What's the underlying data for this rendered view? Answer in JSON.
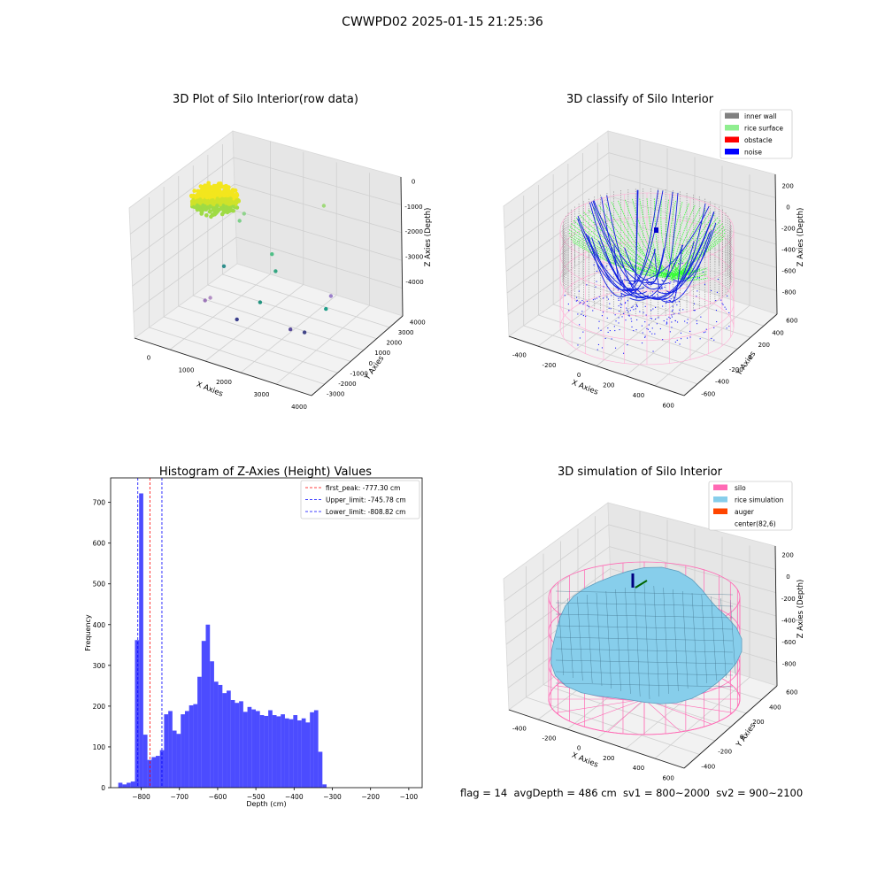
{
  "figure": {
    "suptitle": "CWWPD02 2025-01-15 21:25:36",
    "footer": "flag = 14  avgDepth = 486 cm  sv1 = 800~2000  sv2 = 900~2100"
  },
  "chart_data": [
    {
      "type": "scatter3d",
      "title": "3D Plot of Silo Interior(row data)",
      "xlabel": "X Axies",
      "ylabel": "Y Axies",
      "zlabel": "Z Axies (Depth)",
      "x_ticks": [
        "0",
        "1000",
        "2000",
        "3000",
        "4000"
      ],
      "y_ticks": [
        "-3000",
        "-2000",
        "-1000",
        "0",
        "1000",
        "2000",
        "3000",
        "4000"
      ],
      "z_ticks": [
        "0",
        "-1000",
        "-2000",
        "-3000",
        "-4000"
      ],
      "xlim": [
        -500,
        4000
      ],
      "ylim": [
        -3500,
        4000
      ],
      "zlim": [
        -4500,
        0
      ],
      "colormap": "viridis",
      "cluster_color": "#f5e31a",
      "outlier_points": [
        {
          "x": 2100,
          "y": 3300,
          "z": -1200,
          "color": "#9fd97a"
        },
        {
          "x": 200,
          "y": 2600,
          "z": -2000,
          "color": "#8fd38c"
        },
        {
          "x": 150,
          "y": 2400,
          "z": -2200,
          "color": "#7dcf8a"
        },
        {
          "x": 1300,
          "y": 1600,
          "z": -2600,
          "color": "#4fbf86"
        },
        {
          "x": 1500,
          "y": 1300,
          "z": -3000,
          "color": "#34a682"
        },
        {
          "x": 200,
          "y": 1100,
          "z": -3300,
          "color": "#2e8e8c"
        },
        {
          "x": 1400,
          "y": 400,
          "z": -3800,
          "color": "#22937f"
        },
        {
          "x": 3000,
          "y": 1200,
          "z": -3200,
          "color": "#9a7fc9"
        },
        {
          "x": 3000,
          "y": 800,
          "z": -3500,
          "color": "#1f9e89"
        },
        {
          "x": 300,
          "y": -200,
          "z": -3900,
          "color": "#b38fc4"
        },
        {
          "x": 200,
          "y": -300,
          "z": -4000,
          "color": "#9c76b8"
        },
        {
          "x": 1100,
          "y": -500,
          "z": -4200,
          "color": "#3b3f8c"
        },
        {
          "x": 2400,
          "y": -200,
          "z": -4100,
          "color": "#5a4c9a"
        },
        {
          "x": 2800,
          "y": -300,
          "z": -4000,
          "color": "#414487"
        }
      ]
    },
    {
      "type": "scatter3d",
      "title": "3D classify of Silo Interior",
      "xlabel": "X Axies",
      "ylabel": "Y Axies",
      "zlabel": "Z Axies (Depth)",
      "x_ticks": [
        "-400",
        "-200",
        "0",
        "200",
        "400",
        "600"
      ],
      "y_ticks": [
        "-600",
        "-400",
        "-200",
        "0",
        "200",
        "400",
        "600"
      ],
      "z_ticks": [
        "200",
        "0",
        "-200",
        "-400",
        "-600",
        "-800"
      ],
      "legend": [
        {
          "label": "inner wall",
          "color": "#808080"
        },
        {
          "label": "rice surface",
          "color": "#90ee90"
        },
        {
          "label": "obstacle",
          "color": "#ff0000"
        },
        {
          "label": "noise",
          "color": "#0000ff"
        }
      ],
      "legend_position": "top-right"
    },
    {
      "type": "bar",
      "title": "Histogram of Z-Axies (Height) Values",
      "xlabel": "Depth (cm)",
      "ylabel": "Frequency",
      "bar_color": "#0000ff",
      "xlim": [
        -880,
        -65
      ],
      "ylim": [
        0,
        760
      ],
      "x_ticks": [
        -800,
        -700,
        -600,
        -500,
        -400,
        -300,
        -200,
        -100
      ],
      "y_ticks": [
        0,
        100,
        200,
        300,
        400,
        500,
        600,
        700
      ],
      "bin_start": -860,
      "bin_width": 10.9,
      "values": [
        12,
        8,
        12,
        15,
        362,
        722,
        130,
        68,
        75,
        78,
        92,
        180,
        188,
        140,
        132,
        180,
        188,
        202,
        205,
        272,
        360,
        400,
        310,
        260,
        252,
        232,
        238,
        215,
        208,
        212,
        186,
        198,
        192,
        188,
        178,
        176,
        190,
        178,
        175,
        180,
        170,
        168,
        178,
        165,
        170,
        160,
        185,
        190,
        88,
        8
      ],
      "vlines": [
        {
          "label": "first_peak: -777.30 cm",
          "x": -777.3,
          "color": "#ff0000"
        },
        {
          "label": "Upper_limit: -745.78 cm",
          "x": -745.78,
          "color": "#0000ff"
        },
        {
          "label": "Lower_limit: -808.82 cm",
          "x": -808.82,
          "color": "#0000ff"
        }
      ],
      "legend_position": "top-right"
    },
    {
      "type": "surface3d",
      "title": "3D simulation of Silo Interior",
      "xlabel": "X Axies",
      "ylabel": "Y Axies",
      "zlabel": "Z Axies (Depth)",
      "x_ticks": [
        "-400",
        "-200",
        "0",
        "200",
        "400",
        "600"
      ],
      "y_ticks": [
        "-400",
        "-200",
        "0",
        "200",
        "400",
        "600"
      ],
      "z_ticks": [
        "200",
        "0",
        "-200",
        "-400",
        "-600",
        "-800"
      ],
      "legend": [
        {
          "label": "silo",
          "color": "#ff69b4"
        },
        {
          "label": "rice simulation",
          "color": "#87ceeb"
        },
        {
          "label": "auger",
          "color": "#ff4500"
        },
        {
          "label": "center(82,6)",
          "color": "none"
        }
      ],
      "legend_position": "top-right"
    }
  ]
}
